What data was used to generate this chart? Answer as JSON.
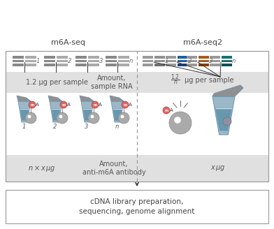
{
  "title_left": "m6A-seq",
  "title_right": "m6A-seq2",
  "label_left": "1.2 μg per sample",
  "label_center_top": "Amount,\nsample RNA",
  "label_center_bottom": "Amount,\nanti-m6A antibody",
  "label_right_top": "1.2",
  "label_right_top2": "μg per sample",
  "label_right_top_frac": "n",
  "label_bottom_left": "n × xμg",
  "label_bottom_right": "xμg",
  "label_final": "cDNA library preparation,\nsequencing, genome alignment",
  "gray1": "#888888",
  "gray2": "#aaaaaa",
  "gray3": "#666666",
  "blue1": "#2060a0",
  "blue2": "#184080",
  "brown1": "#a06020",
  "brown2": "#804010",
  "teal1": "#207070",
  "teal2": "#105050",
  "tube_body": "#9ab8c8",
  "tube_dark": "#7090a8",
  "tube_liquid": "#6898b0",
  "tube_cap": "#909090",
  "bead_color": "#aaaaaa",
  "band_gray": "#e0e0e0",
  "box_edge": "#999999",
  "text_dark": "#444444",
  "text_label": "#555555"
}
